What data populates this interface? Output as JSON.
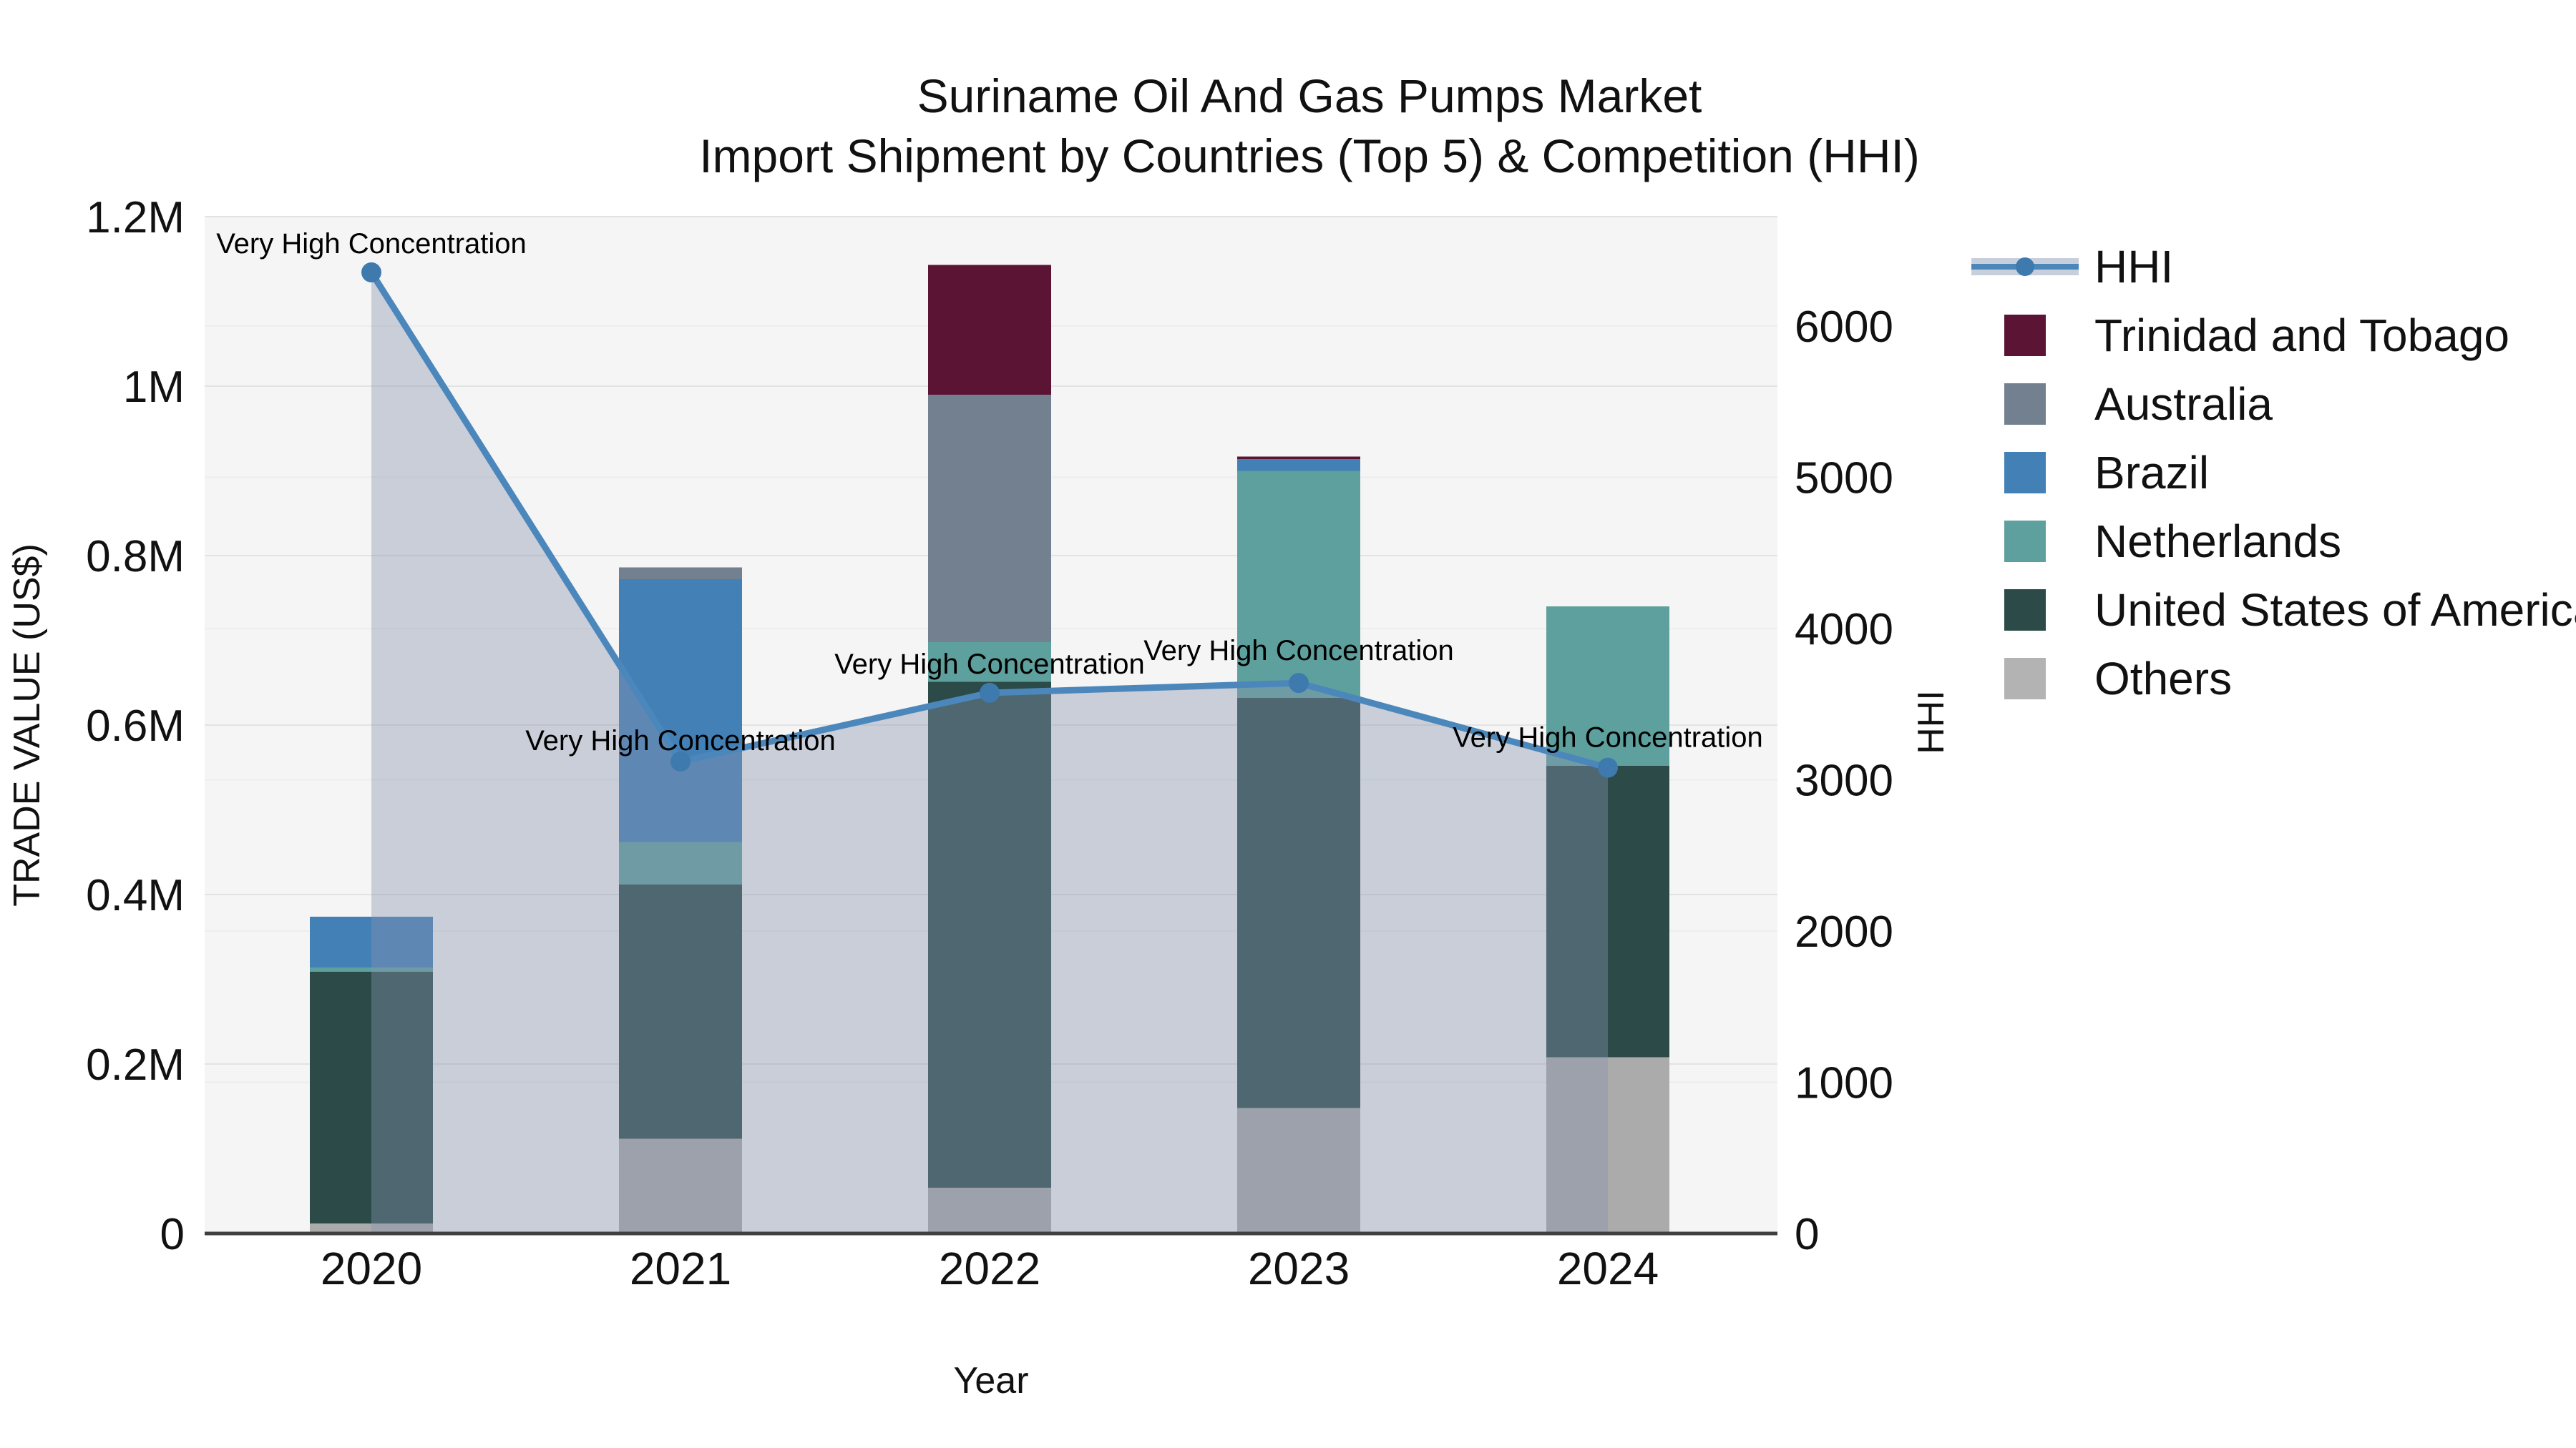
{
  "title": {
    "line1": "Suriname Oil And Gas Pumps Market",
    "line2": "Import Shipment by Countries (Top 5) & Competition (HHI)"
  },
  "x_axis": {
    "title": "Year",
    "categories": [
      "2020",
      "2021",
      "2022",
      "2023",
      "2024"
    ]
  },
  "y_left": {
    "title": "TRADE VALUE (US$)",
    "tick_labels": [
      "0",
      "0.2M",
      "0.4M",
      "0.6M",
      "0.8M",
      "1M",
      "1.2M"
    ],
    "tick_values": [
      0,
      200000,
      400000,
      600000,
      800000,
      1000000,
      1200000
    ]
  },
  "y_right": {
    "title": "HHI",
    "tick_labels": [
      "0",
      "1000",
      "2000",
      "3000",
      "4000",
      "5000",
      "6000"
    ],
    "tick_values": [
      0,
      1000,
      2000,
      3000,
      4000,
      5000,
      6000
    ]
  },
  "annotation_text": "Very High Concentration",
  "legend": {
    "items": [
      {
        "label": "HHI",
        "type": "line"
      },
      {
        "label": "Trinidad and Tobago",
        "type": "swatch",
        "color": "#5B1433"
      },
      {
        "label": "Australia",
        "type": "swatch",
        "color": "#72808F"
      },
      {
        "label": "Brazil",
        "type": "swatch",
        "color": "#4380B6"
      },
      {
        "label": "Netherlands",
        "type": "swatch",
        "color": "#5EA09D"
      },
      {
        "label": "United States of America",
        "type": "swatch",
        "color": "#2B4A48"
      },
      {
        "label": "Others",
        "type": "swatch",
        "color": "#B3B3B3"
      }
    ]
  },
  "chart_data": {
    "type": "bar",
    "subtype": "stacked-bars-with-dual-axis-line",
    "title": "Suriname Oil And Gas Pumps Market Import Shipment by Countries (Top 5) & Competition (HHI)",
    "xlabel": "Year",
    "ylabel_left": "TRADE VALUE (US$)",
    "ylabel_right": "HHI",
    "categories": [
      "2020",
      "2021",
      "2022",
      "2023",
      "2024"
    ],
    "ylim_left": [
      0,
      1200000
    ],
    "ylim_right": [
      0,
      6750
    ],
    "grid": true,
    "legend_position": "right",
    "bar_unit": "US$",
    "series": [
      {
        "name": "Trinidad and Tobago",
        "color": "#5B1433",
        "values": [
          0,
          0,
          153000,
          3000,
          0
        ]
      },
      {
        "name": "Australia",
        "color": "#72808F",
        "values": [
          0,
          14000,
          292000,
          0,
          0
        ]
      },
      {
        "name": "Brazil",
        "color": "#4380B6",
        "values": [
          60000,
          310000,
          0,
          14000,
          0
        ]
      },
      {
        "name": "Netherlands",
        "color": "#5EA09D",
        "values": [
          5000,
          50000,
          47000,
          268000,
          188000
        ]
      },
      {
        "name": "United States of America",
        "color": "#2B4A48",
        "values": [
          297000,
          300000,
          597000,
          484000,
          344000
        ]
      },
      {
        "name": "Others",
        "color": "#ABABAB",
        "values": [
          12000,
          112000,
          54000,
          148000,
          208000
        ]
      }
    ],
    "stack_order_bottom_to_top": [
      "Others",
      "United States of America",
      "Netherlands",
      "Brazil",
      "Australia",
      "Trinidad and Tobago"
    ],
    "bar_totals": [
      374000,
      786000,
      1143000,
      917000,
      740000
    ],
    "line_series": {
      "name": "HHI",
      "axis": "right",
      "color": "#4C87BC",
      "marker_color": "#3F7AAF",
      "area_fill": "rgba(136,147,175,0.40)",
      "values": [
        6355,
        3120,
        3575,
        3640,
        3080
      ]
    },
    "annotations": [
      {
        "x": "2020",
        "text": "Very High Concentration"
      },
      {
        "x": "2021",
        "text": "Very High Concentration"
      },
      {
        "x": "2022",
        "text": "Very High Concentration"
      },
      {
        "x": "2023",
        "text": "Very High Concentration"
      },
      {
        "x": "2024",
        "text": "Very High Concentration"
      }
    ]
  }
}
